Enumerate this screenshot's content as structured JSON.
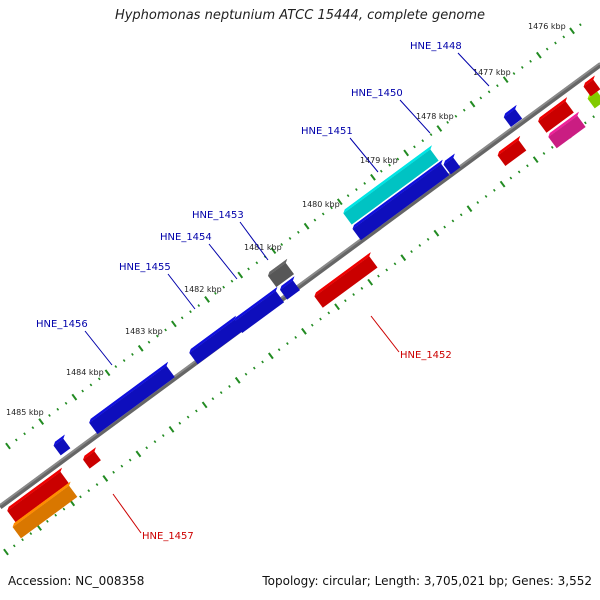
{
  "title": "Hyphomonas neptunium ATCC 15444, complete genome",
  "footer": {
    "accession": "Accession: NC_008358",
    "summary": "Topology: circular; Length: 3,705,021 bp; Genes: 3,552"
  },
  "colors": {
    "backbone": "#8a8a8a",
    "tick": "#228b22",
    "label_forward": "#0000aa",
    "label_reverse": "#cc0000"
  },
  "kbp_labels": [
    "1476 kbp",
    "1477 kbp",
    "1478 kbp",
    "1479 kbp",
    "1480 kbp",
    "1481 kbp",
    "1482 kbp",
    "1483 kbp",
    "1484 kbp",
    "1485 kbp"
  ],
  "gene_labels": [
    "HNE_1448",
    "HNE_1450",
    "HNE_1451",
    "HNE_1453",
    "HNE_1454",
    "HNE_1455",
    "HNE_1456",
    "HNE_1452",
    "HNE_1457"
  ],
  "gene_colors": {
    "blue": "#1010dd",
    "red": "#ee0000",
    "cyan": "#00e5e5",
    "gray": "#666666",
    "orange": "#ff8c00",
    "magenta": "#ee2299",
    "lime": "#99ee00"
  }
}
